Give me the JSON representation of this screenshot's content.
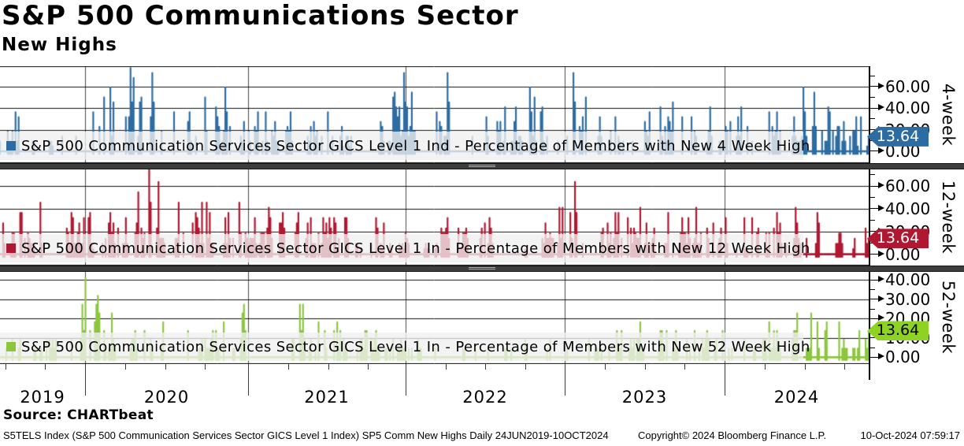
{
  "header": {
    "title": "S&P 500 Communications Sector",
    "subtitle": "New Highs"
  },
  "footer": {
    "source": "Source: CHARTbeat",
    "left": "S5TELS Index (S&P 500 Communication Services Sector GICS Level 1 Index) SP5 Comm New Highs  Daily 24JUN2019-10OCT2024",
    "copyright": "Copyright© 2024 Bloomberg Finance L.P.",
    "timestamp": "10-Oct-2024 07:59:17"
  },
  "chart_data": {
    "type": "line",
    "title": "S&P 500 Communications Sector",
    "subtitle": "New Highs",
    "unit": "Percentage of index members (%)",
    "members_quantum_pct": 4.5455,
    "x_axis": {
      "start": "24JUN2019",
      "end": "10OCT2024",
      "frequency": "Daily",
      "tick_labels": [
        "2019",
        "2020",
        "2021",
        "2022",
        "2023",
        "2024"
      ],
      "year_boundaries_frac": [
        0.098,
        0.2856,
        0.4669,
        0.6501,
        0.8341
      ]
    },
    "panels": [
      {
        "name": "4-week",
        "legend": "S&P 500 Communication Services Sector GICS Level 1 Ind - Percentage of Members with New 4 Week High",
        "color": "#2d6ca2",
        "tag_color": "#2d6ca2",
        "tag_text_color": "#ffffff",
        "last_value": 13.64,
        "last_value_label": "13.64",
        "ylim": [
          -11,
          79
        ],
        "major_ticks": [
          {
            "v": 0,
            "label": "0.00"
          },
          {
            "v": 20,
            "label": "20.00"
          },
          {
            "v": 40,
            "label": "40.00"
          },
          {
            "v": 60,
            "label": "60.00"
          }
        ],
        "minor_ticks": [
          10,
          30,
          50,
          70
        ],
        "seed": 7,
        "activity": {
          "p_start": 0.32,
          "p_stay": 0.64
        },
        "envelope": [
          [
            0,
            40
          ],
          [
            0.03,
            48
          ],
          [
            0.06,
            34
          ],
          [
            0.09,
            30
          ],
          [
            0.12,
            52
          ],
          [
            0.15,
            76
          ],
          [
            0.175,
            74
          ],
          [
            0.2,
            46
          ],
          [
            0.23,
            50
          ],
          [
            0.26,
            58
          ],
          [
            0.29,
            56
          ],
          [
            0.32,
            40
          ],
          [
            0.36,
            42
          ],
          [
            0.4,
            34
          ],
          [
            0.44,
            28
          ],
          [
            0.465,
            75
          ],
          [
            0.49,
            36
          ],
          [
            0.515,
            72
          ],
          [
            0.545,
            36
          ],
          [
            0.575,
            52
          ],
          [
            0.61,
            60
          ],
          [
            0.64,
            44
          ],
          [
            0.66,
            74
          ],
          [
            0.685,
            46
          ],
          [
            0.72,
            40
          ],
          [
            0.755,
            56
          ],
          [
            0.79,
            46
          ],
          [
            0.83,
            36
          ],
          [
            0.87,
            44
          ],
          [
            0.9,
            40
          ],
          [
            0.925,
            60
          ],
          [
            0.95,
            56
          ],
          [
            0.975,
            46
          ],
          [
            1,
            28
          ]
        ]
      },
      {
        "name": "12-week",
        "legend": "S&P 500 Communication Services Sector GICS Level 1 In - Percentage of Members with New 12 Week High",
        "color": "#b01730",
        "tag_color": "#b01730",
        "tag_text_color": "#ffffff",
        "last_value": 13.64,
        "last_value_label": "13.64",
        "ylim": [
          -10,
          76
        ],
        "major_ticks": [
          {
            "v": 0,
            "label": "0.00"
          },
          {
            "v": 20,
            "label": "20.00"
          },
          {
            "v": 40,
            "label": "40.00"
          },
          {
            "v": 60,
            "label": "60.00"
          }
        ],
        "minor_ticks": [
          10,
          30,
          50,
          70
        ],
        "seed": 13,
        "activity": {
          "p_start": 0.34,
          "p_stay": 0.66
        },
        "envelope": [
          [
            0,
            30
          ],
          [
            0.04,
            46
          ],
          [
            0.08,
            40
          ],
          [
            0.12,
            34
          ],
          [
            0.15,
            40
          ],
          [
            0.172,
            76
          ],
          [
            0.195,
            56
          ],
          [
            0.22,
            46
          ],
          [
            0.25,
            52
          ],
          [
            0.28,
            44
          ],
          [
            0.31,
            48
          ],
          [
            0.34,
            44
          ],
          [
            0.38,
            32
          ],
          [
            0.42,
            34
          ],
          [
            0.46,
            28
          ],
          [
            0.5,
            32
          ],
          [
            0.54,
            36
          ],
          [
            0.57,
            40
          ],
          [
            0.6,
            32
          ],
          [
            0.63,
            36
          ],
          [
            0.662,
            62
          ],
          [
            0.69,
            36
          ],
          [
            0.72,
            42
          ],
          [
            0.75,
            48
          ],
          [
            0.78,
            38
          ],
          [
            0.81,
            42
          ],
          [
            0.85,
            32
          ],
          [
            0.88,
            36
          ],
          [
            0.91,
            44
          ],
          [
            0.94,
            40
          ],
          [
            0.97,
            36
          ],
          [
            1,
            24
          ]
        ]
      },
      {
        "name": "52-week",
        "legend": "S&P 500 Communication Services Sector GICS Level 1 In - Percentage of Members with New 52 Week High",
        "color": "#8cc63e",
        "tag_color": "#8ed224",
        "tag_text_color": "#000000",
        "last_value": 13.64,
        "last_value_label": "13.64",
        "ylim": [
          -3.5,
          45
        ],
        "major_ticks": [
          {
            "v": 0,
            "label": "0.00"
          },
          {
            "v": 10,
            "label": "10.00"
          },
          {
            "v": 20,
            "label": "20.00"
          },
          {
            "v": 30,
            "label": "30.00"
          },
          {
            "v": 40,
            "label": "40.00"
          }
        ],
        "minor_ticks": [
          5,
          15,
          25,
          35
        ],
        "seed": 42,
        "activity": {
          "p_start": 0.3,
          "p_stay": 0.6
        },
        "envelope": [
          [
            0,
            8
          ],
          [
            0.04,
            10
          ],
          [
            0.07,
            12
          ],
          [
            0.095,
            41
          ],
          [
            0.115,
            38
          ],
          [
            0.14,
            12
          ],
          [
            0.175,
            20
          ],
          [
            0.19,
            34
          ],
          [
            0.21,
            14
          ],
          [
            0.25,
            18
          ],
          [
            0.285,
            34
          ],
          [
            0.305,
            40
          ],
          [
            0.32,
            45
          ],
          [
            0.34,
            38
          ],
          [
            0.36,
            28
          ],
          [
            0.385,
            20
          ],
          [
            0.41,
            14
          ],
          [
            0.45,
            10
          ],
          [
            0.5,
            7
          ],
          [
            0.55,
            6
          ],
          [
            0.6,
            9
          ],
          [
            0.65,
            8
          ],
          [
            0.7,
            12
          ],
          [
            0.73,
            18
          ],
          [
            0.77,
            16
          ],
          [
            0.81,
            12
          ],
          [
            0.85,
            16
          ],
          [
            0.88,
            18
          ],
          [
            0.91,
            22
          ],
          [
            0.94,
            26
          ],
          [
            0.97,
            22
          ],
          [
            1,
            15
          ]
        ]
      }
    ]
  }
}
